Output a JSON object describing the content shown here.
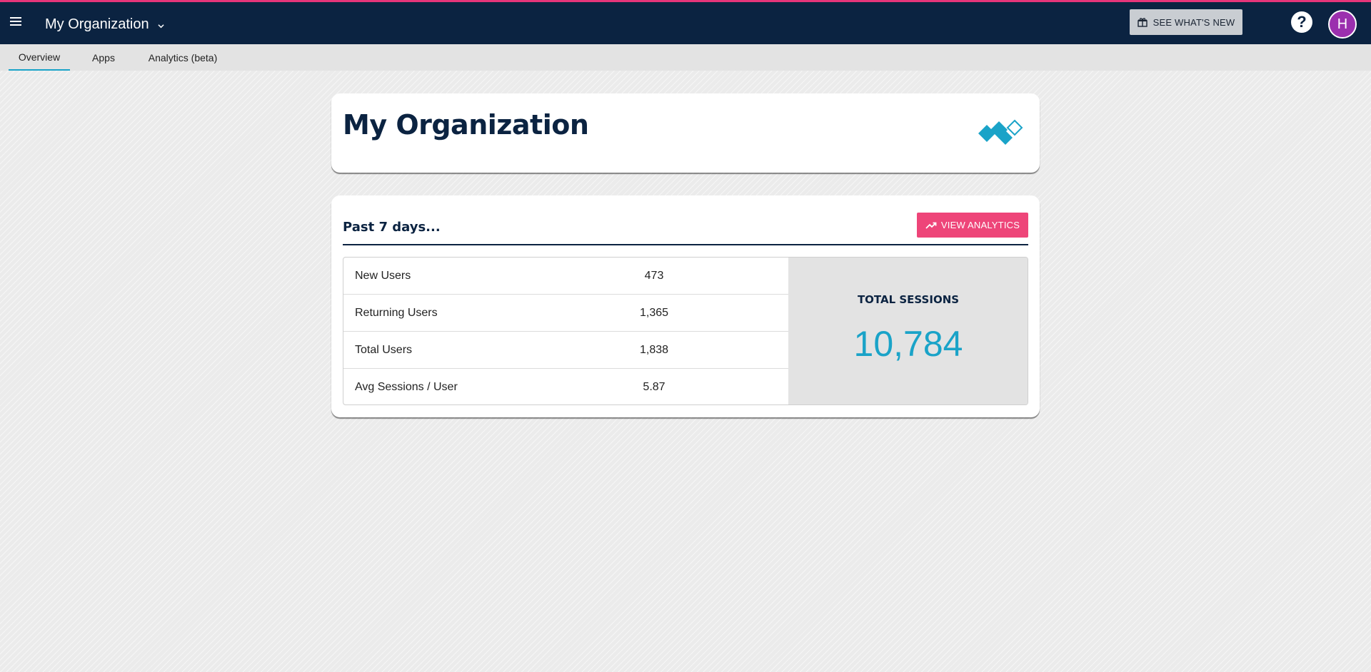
{
  "header": {
    "org_name": "My Organization",
    "whats_new_label": "SEE WHAT'S NEW",
    "help_icon": "question-circle-icon",
    "avatar_initial": "H",
    "accent_color": "#e6357a",
    "bar_color": "#0b2341"
  },
  "tabs": [
    {
      "label": "Overview",
      "active": true
    },
    {
      "label": "Apps",
      "active": false
    },
    {
      "label": "Analytics (beta)",
      "active": false
    }
  ],
  "org_card": {
    "title": "My Organization",
    "logo_icon": "diamond-logo-icon"
  },
  "summary": {
    "heading": "Past 7 days...",
    "view_analytics_label": "VIEW ANALYTICS",
    "rows": [
      {
        "label": "New Users",
        "value": "473"
      },
      {
        "label": "Returning Users",
        "value": "1,365"
      },
      {
        "label": "Total Users",
        "value": "1,838"
      },
      {
        "label": "Avg Sessions / User",
        "value": "5.87"
      }
    ],
    "total_sessions_label": "TOTAL SESSIONS",
    "total_sessions_value": "10,784"
  }
}
